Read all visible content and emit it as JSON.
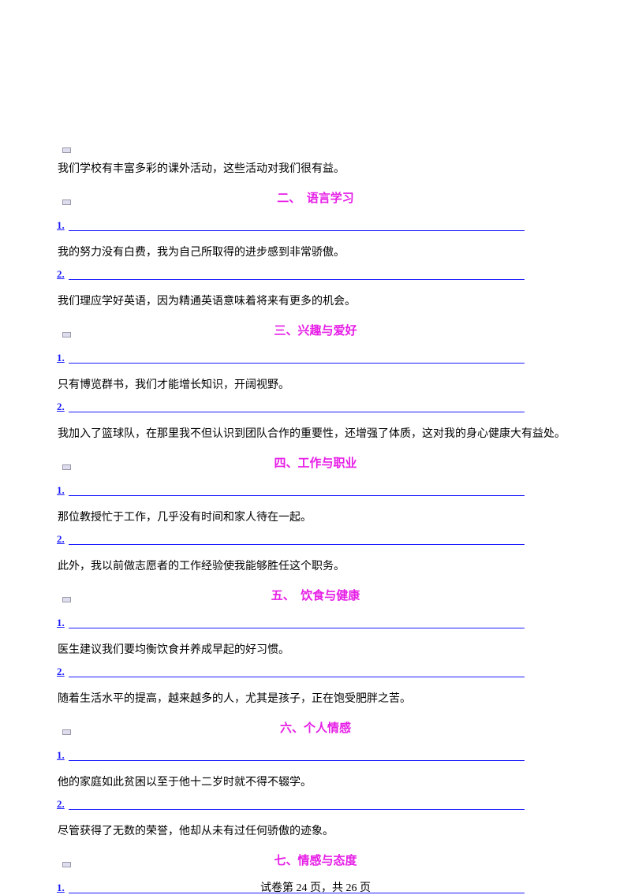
{
  "intro": "我们学校有丰富多彩的课外活动，这些活动对我们很有益。",
  "sections": [
    {
      "heading": "二、　语言学习",
      "items": [
        {
          "number": "1.",
          "sentence": "我的努力没有白费，我为自己所取得的进步感到非常骄傲。"
        },
        {
          "number": "2.",
          "sentence": "我们理应学好英语，因为精通英语意味着将来有更多的机会。"
        }
      ]
    },
    {
      "heading": "三、兴趣与爱好",
      "items": [
        {
          "number": "1.",
          "sentence": "只有博览群书，我们才能增长知识，开阔视野。"
        },
        {
          "number": "2.",
          "sentence": "我加入了篮球队，在那里我不但认识到团队合作的重要性，还增强了体质，这对我的身心健康大有益处。"
        }
      ]
    },
    {
      "heading": "四、工作与职业",
      "items": [
        {
          "number": "1.",
          "sentence": "那位教授忙于工作，几乎没有时间和家人待在一起。"
        },
        {
          "number": "2.",
          "sentence": "此外，我以前做志愿者的工作经验使我能够胜任这个职务。"
        }
      ]
    },
    {
      "heading": "五、　饮食与健康",
      "items": [
        {
          "number": "1.",
          "sentence": "医生建议我们要均衡饮食并养成早起的好习惯。"
        },
        {
          "number": "2.",
          "sentence": "随着生活水平的提高，越来越多的人，尤其是孩子，正在饱受肥胖之苦。"
        }
      ]
    },
    {
      "heading": "六、个人情感",
      "items": [
        {
          "number": "1.",
          "sentence": "他的家庭如此贫困以至于他十二岁时就不得不辍学。"
        },
        {
          "number": "2.",
          "sentence": "尽管获得了无数的荣誉，他却从未有过任何骄傲的迹象。"
        }
      ]
    },
    {
      "heading": "七、情感与态度",
      "items": [
        {
          "number": "1."
        }
      ]
    }
  ],
  "footer": "试卷第 24 页，共 26 页"
}
